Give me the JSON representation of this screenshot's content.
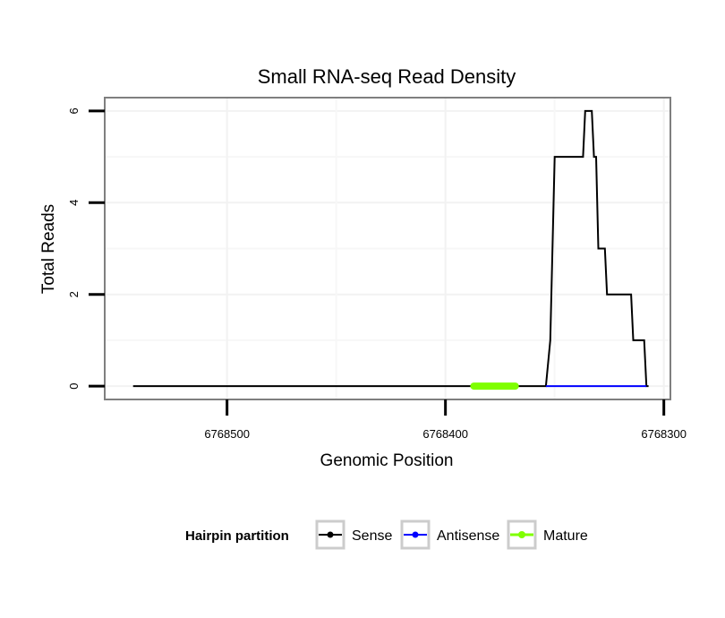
{
  "chart_data": {
    "type": "line",
    "title": "Small RNA-seq Read Density",
    "xlabel": "Genomic Position",
    "ylabel": "Total Reads",
    "x_reversed": true,
    "xlim": [
      6768556,
      6768297
    ],
    "ylim": [
      -0.29,
      6.29
    ],
    "x_ticks": [
      6768500,
      6768400,
      6768300
    ],
    "x_tick_labels": [
      "6768500",
      "6768400",
      "6768300"
    ],
    "y_ticks": [
      0,
      2,
      4,
      6
    ],
    "y_tick_labels": [
      "0",
      "2",
      "4",
      "6"
    ],
    "grid": true,
    "legend": {
      "title": "Hairpin partition",
      "position": "bottom",
      "entries": [
        {
          "label": "Sense",
          "color": "#000000"
        },
        {
          "label": "Antisense",
          "color": "#0000ff"
        },
        {
          "label": "Mature",
          "color": "#7fff00"
        }
      ]
    },
    "series": [
      {
        "name": "Sense",
        "color": "#000000",
        "x": [
          6768543,
          6768354,
          6768352,
          6768350,
          6768337,
          6768336,
          6768335,
          6768333,
          6768332,
          6768331,
          6768330,
          6768327,
          6768326,
          6768321,
          6768315,
          6768314,
          6768309,
          6768308,
          6768307
        ],
        "y": [
          0,
          0,
          1,
          5,
          5,
          6,
          6,
          6,
          5,
          5,
          3,
          3,
          2,
          2,
          2,
          1,
          1,
          0,
          0
        ]
      },
      {
        "name": "Antisense",
        "color": "#0000ff",
        "x": [
          6768354,
          6768308
        ],
        "y": [
          0,
          0
        ]
      },
      {
        "name": "Mature",
        "color": "#7fff00",
        "x": [
          6768387,
          6768368
        ],
        "y": [
          0,
          0
        ]
      }
    ]
  }
}
